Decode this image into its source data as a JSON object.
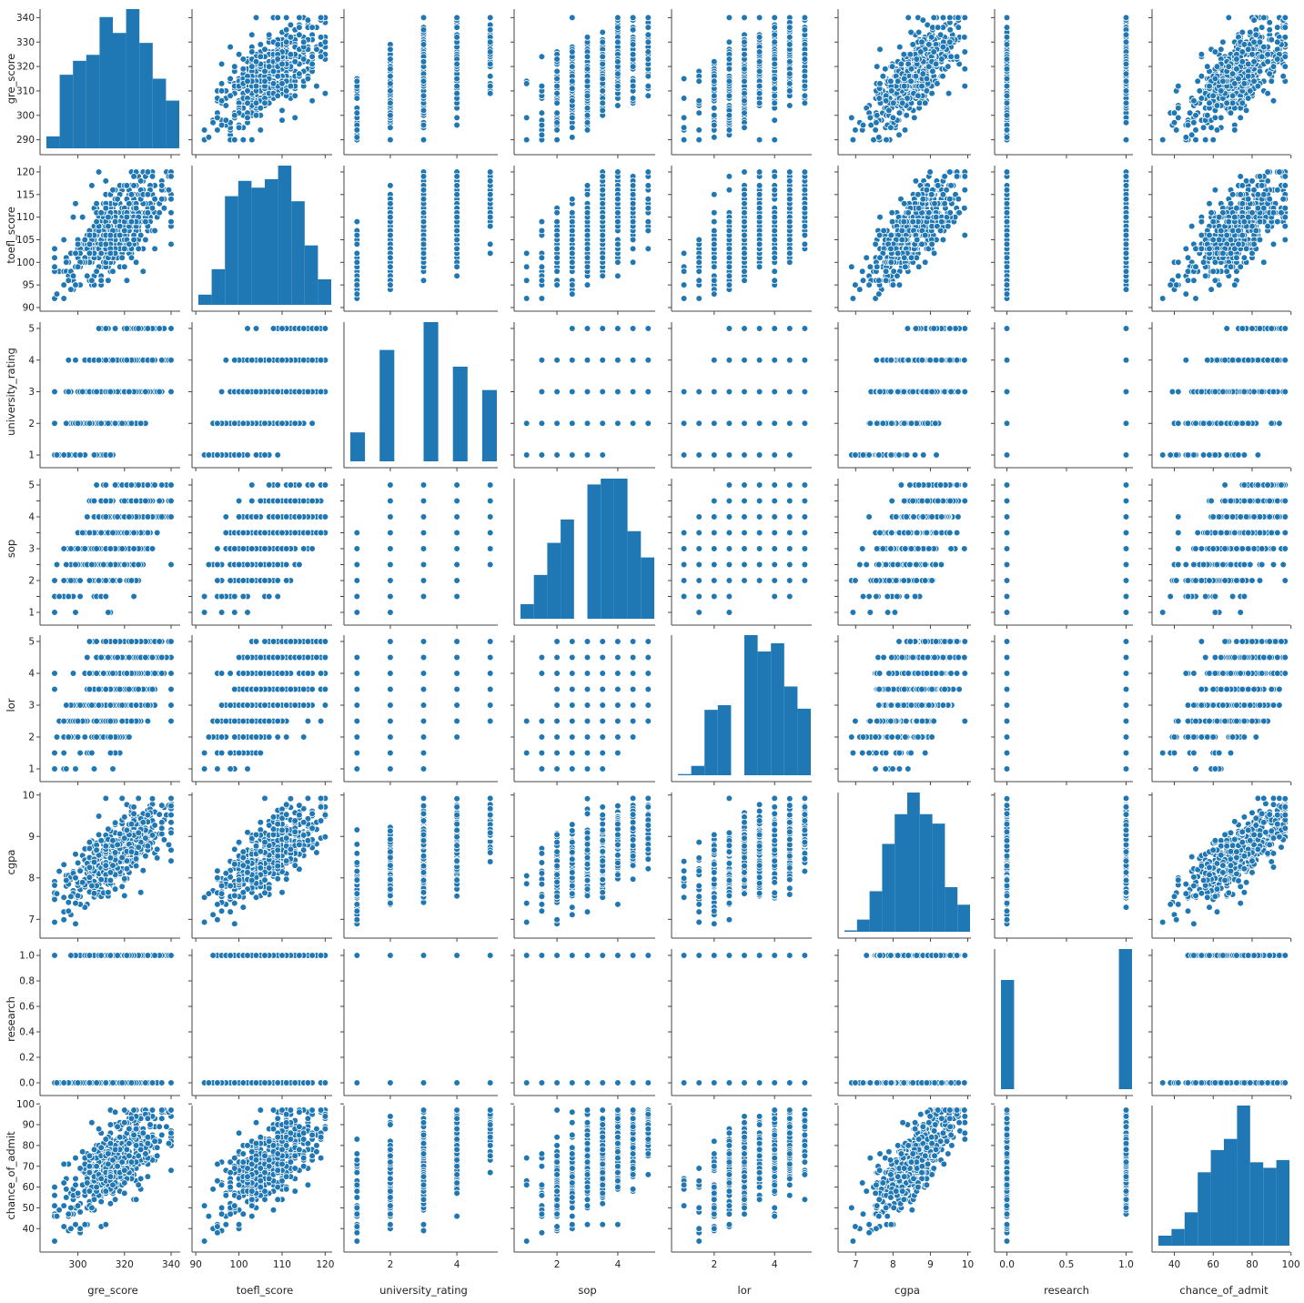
{
  "chart_data": {
    "type": "scatter",
    "variables": [
      "gre_score",
      "toefl_score",
      "university_rating",
      "sop",
      "lor",
      "cgpa",
      "research",
      "chance_of_admit"
    ],
    "point_color": "#1f77b4",
    "grid": false,
    "axes": {
      "gre_score": {
        "range": [
          286.5,
          343.5
        ],
        "ticks": [
          300,
          320,
          340
        ],
        "tick_labels": [
          "300",
          "320",
          "340"
        ],
        "y_ticks": [
          290,
          300,
          310,
          320,
          330,
          340
        ],
        "y_tick_labels": [
          "290",
          "300",
          "310",
          "320",
          "330",
          "340"
        ]
      },
      "toefl_score": {
        "range": [
          90.6,
          121.4
        ],
        "ticks": [
          90,
          100,
          110,
          120
        ],
        "tick_labels": [
          "90",
          "100",
          "110",
          "120"
        ],
        "y_ticks": [
          90,
          95,
          100,
          105,
          110,
          115,
          120
        ],
        "y_tick_labels": [
          "90",
          "95",
          "100",
          "105",
          "110",
          "115",
          "120"
        ]
      },
      "university_rating": {
        "range": [
          0.8,
          5.2
        ],
        "ticks": [
          2,
          4
        ],
        "tick_labels": [
          "2",
          "4"
        ],
        "y_ticks": [
          1,
          2,
          3,
          4,
          5
        ],
        "y_tick_labels": [
          "1",
          "2",
          "3",
          "4",
          "5"
        ]
      },
      "sop": {
        "range": [
          0.8,
          5.2
        ],
        "ticks": [
          2,
          4
        ],
        "tick_labels": [
          "2",
          "4"
        ],
        "y_ticks": [
          1,
          1.5,
          2,
          2.5,
          3,
          3.5,
          4,
          4.5,
          5
        ],
        "y_tick_labels": [
          "1",
          "",
          "2",
          "",
          "3",
          "",
          "4",
          "",
          "5"
        ]
      },
      "lor": {
        "range": [
          0.8,
          5.2
        ],
        "ticks": [
          2,
          4
        ],
        "tick_labels": [
          "2",
          "4"
        ],
        "y_ticks": [
          1,
          2,
          3,
          4,
          5
        ],
        "y_tick_labels": [
          "1",
          "2",
          "3",
          "4",
          "5"
        ]
      },
      "cgpa": {
        "range": [
          6.7,
          10.06
        ],
        "ticks": [
          7,
          8,
          9,
          10
        ],
        "tick_labels": [
          "7",
          "8",
          "9",
          "10"
        ],
        "y_ticks": [
          7,
          8,
          9,
          10
        ],
        "y_tick_labels": [
          "7",
          "8",
          "9",
          "10"
        ]
      },
      "research": {
        "range": [
          -0.05,
          1.05
        ],
        "ticks": [
          0.0,
          0.5,
          1.0
        ],
        "tick_labels": [
          "0.0",
          "0.5",
          "1.0"
        ],
        "y_ticks": [
          0,
          0.2,
          0.4,
          0.6,
          0.8,
          1.0
        ],
        "y_tick_labels": [
          "0.0",
          "0.2",
          "0.4",
          "0.6",
          "0.8",
          "1.0"
        ]
      },
      "chance_of_admit": {
        "range": [
          31.8,
          99.2
        ],
        "ticks": [
          40,
          60,
          80,
          100
        ],
        "tick_labels": [
          "40",
          "60",
          "80",
          "100"
        ],
        "y_ticks": [
          40,
          50,
          60,
          70,
          80,
          90,
          100
        ],
        "y_tick_labels": [
          "40",
          "50",
          "60",
          "70",
          "80",
          "90",
          "100"
        ]
      }
    },
    "histograms": {
      "gre_score": {
        "edges": [
          290,
          295,
          300,
          305,
          310,
          315,
          320,
          325,
          330,
          335,
          340
        ],
        "counts": [
          6,
          37,
          44,
          47,
          66,
          58,
          70,
          53,
          35,
          24
        ]
      },
      "toefl_score": {
        "edges": [
          92,
          94.8,
          97.6,
          100.4,
          103.2,
          106,
          108.8,
          111.6,
          114.4,
          117.2,
          120
        ],
        "counts": [
          6,
          21,
          64,
          73,
          69,
          74,
          82,
          61,
          35,
          15
        ]
      },
      "university_rating": {
        "edges": [
          1,
          1.4,
          1.8,
          2.2,
          2.6,
          3,
          3.4,
          3.8,
          4.2,
          4.6,
          5
        ],
        "counts": [
          26,
          0,
          100,
          0,
          0,
          125,
          0,
          85,
          0,
          64
        ]
      },
      "sop": {
        "edges": [
          1,
          1.4,
          1.8,
          2.2,
          2.6,
          3,
          3.4,
          3.8,
          4.2,
          4.6,
          5
        ],
        "counts": [
          10,
          30,
          52,
          68,
          0,
          92,
          96,
          96,
          60,
          42
        ]
      },
      "lor": {
        "edges": [
          1,
          1.4,
          1.8,
          2.2,
          2.6,
          3,
          3.4,
          3.8,
          4.2,
          4.6,
          5
        ],
        "counts": [
          1,
          8,
          56,
          60,
          0,
          120,
          106,
          113,
          76,
          57
        ]
      },
      "cgpa": {
        "edges": [
          6.8,
          7.11,
          7.42,
          7.73,
          8.04,
          8.35,
          8.66,
          8.97,
          9.28,
          9.59,
          9.9
        ],
        "counts": [
          1,
          9,
          30,
          65,
          87,
          103,
          87,
          80,
          33,
          20
        ]
      },
      "research": {
        "edges": [
          0,
          0.1,
          0.2,
          0.3,
          0.4,
          0.5,
          0.6,
          0.7,
          0.8,
          0.9,
          1.0
        ],
        "counts": [
          219,
          0,
          0,
          0,
          0,
          0,
          0,
          0,
          0,
          281
        ]
      },
      "chance_of_admit": {
        "edges": [
          34,
          40.3,
          46.6,
          52.9,
          59.2,
          65.5,
          71.8,
          78.1,
          84.4,
          90.7,
          97
        ],
        "counts": [
          9,
          15,
          30,
          66,
          86,
          96,
          126,
          75,
          70,
          77
        ]
      }
    },
    "legend": null
  }
}
